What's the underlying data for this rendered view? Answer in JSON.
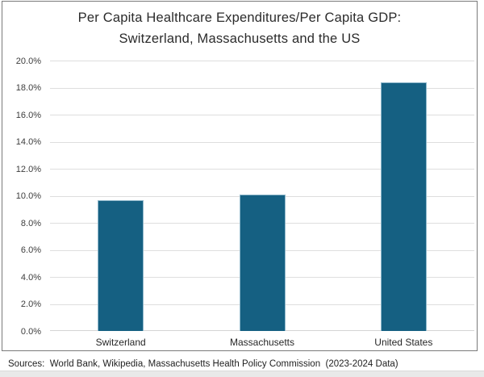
{
  "chart_data": {
    "type": "bar",
    "title": "Per Capita Healthcare Expenditures/Per Capita GDP: Switzerland, Massachusetts and the US",
    "title_lines": [
      "Per Capita Healthcare Expenditures/Per Capita GDP:",
      "Switzerland, Massachusetts and the US"
    ],
    "categories": [
      "Switzerland",
      "Massachusetts",
      "United States"
    ],
    "values": [
      9.7,
      10.1,
      18.4
    ],
    "ylim": [
      0,
      20
    ],
    "ytick_step": 2,
    "ytick_labels_top_to_bottom": [
      "20.0%",
      "18.0%",
      "16.0%",
      "14.0%",
      "12.0%",
      "10.0%",
      "8.0%",
      "6.0%",
      "4.0%",
      "2.0%",
      "0.0%"
    ],
    "grid": true,
    "legend": "none",
    "xlabel": "",
    "ylabel": "",
    "bar_color": "#156082",
    "bar_border_color": "#8fb8cb",
    "footnote": "Sources:  World Bank, Wikipedia, Massachusetts Health Policy Commission  (2023-2024 Data)"
  }
}
